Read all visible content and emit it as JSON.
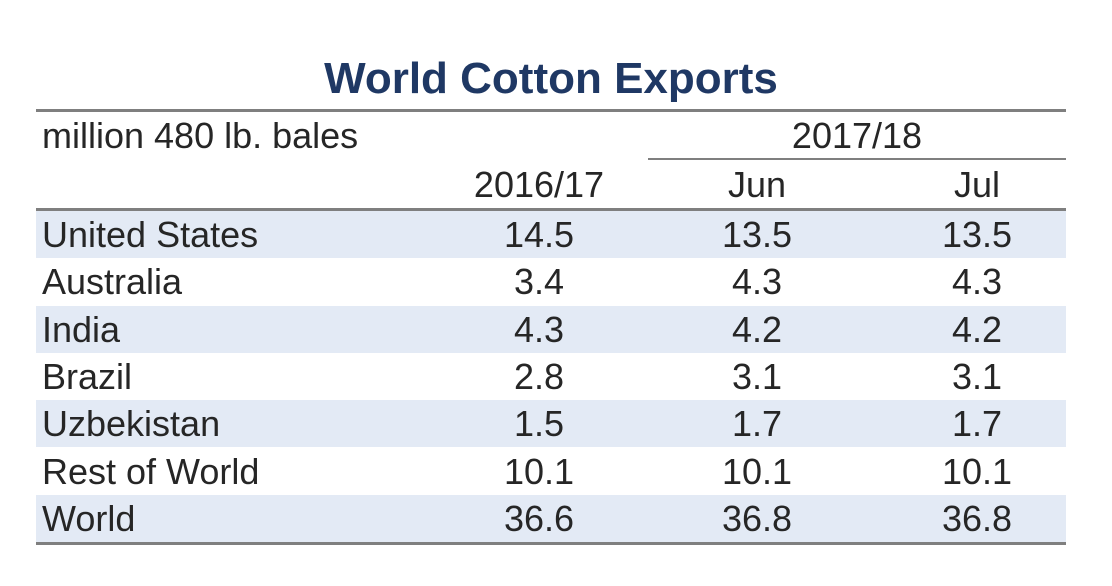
{
  "chart_data": {
    "type": "table",
    "title": "World Cotton Exports",
    "unit_label": "million 480 lb. bales",
    "group_header": "2017/18",
    "columns": [
      "2016/17",
      "Jun",
      "Jul"
    ],
    "rows": [
      {
        "label": "United States",
        "values": [
          "14.5",
          "13.5",
          "13.5"
        ]
      },
      {
        "label": "Australia",
        "values": [
          "3.4",
          "4.3",
          "4.3"
        ]
      },
      {
        "label": "India",
        "values": [
          "4.3",
          "4.2",
          "4.2"
        ]
      },
      {
        "label": "Brazil",
        "values": [
          "2.8",
          "3.1",
          "3.1"
        ]
      },
      {
        "label": "Uzbekistan",
        "values": [
          "1.5",
          "1.7",
          "1.7"
        ]
      },
      {
        "label": "Rest of World",
        "values": [
          "10.1",
          "10.1",
          "10.1"
        ]
      },
      {
        "label": "World",
        "values": [
          "36.6",
          "36.8",
          "36.8"
        ]
      }
    ]
  },
  "colors": {
    "title": "#1f3864",
    "band": "#e3eaf5",
    "rule": "#7f7f7f",
    "text": "#262626"
  }
}
